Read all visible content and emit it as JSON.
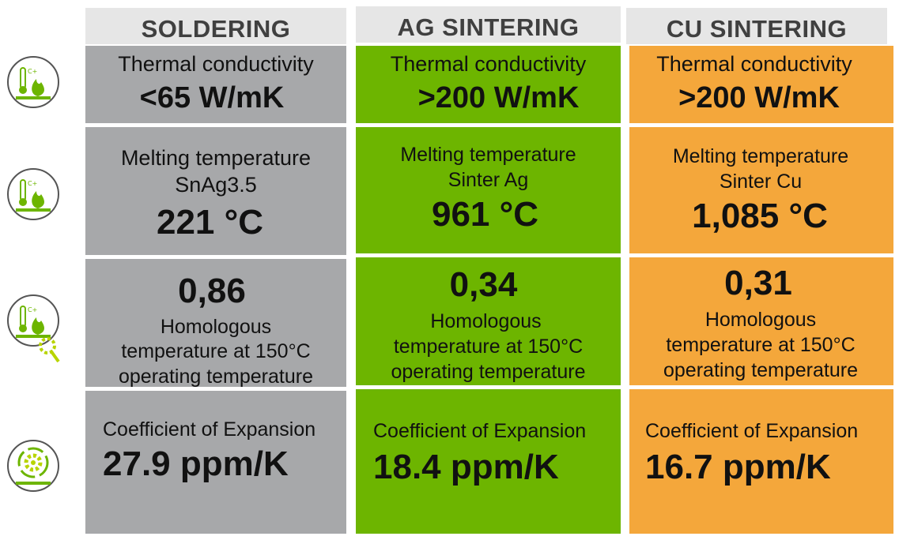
{
  "columns": [
    {
      "header": "SOLDERING",
      "thermal_label": "Thermal conductivity",
      "thermal_value": "<65 W/mK",
      "melting_label": "Melting temperature",
      "melting_material": "SnAg3.5",
      "melting_value": "221 °C",
      "homologous_value": "0,86",
      "homologous_line1": "Homologous",
      "homologous_line2": "temperature at 150°C",
      "homologous_line3": "operating temperature",
      "expansion_label": "Coefficient of Expansion",
      "expansion_value": "27.9 ppm/K"
    },
    {
      "header": "AG SINTERING",
      "thermal_label": "Thermal conductivity",
      "thermal_value": ">200 W/mK",
      "melting_label": "Melting temperature",
      "melting_material": "Sinter Ag",
      "melting_value": "961 °C",
      "homologous_value": "0,34",
      "homologous_line1": "Homologous",
      "homologous_line2": "temperature at 150°C",
      "homologous_line3": "operating temperature",
      "expansion_label": "Coefficient of Expansion",
      "expansion_value": "18.4 ppm/K"
    },
    {
      "header": "CU SINTERING",
      "thermal_label": "Thermal conductivity",
      "thermal_value": ">200 W/mK",
      "melting_label": "Melting temperature",
      "melting_material": "Sinter Cu",
      "melting_value": "1,085 °C",
      "homologous_value": "0,31",
      "homologous_line1": "Homologous",
      "homologous_line2": "temperature at 150°C",
      "homologous_line3": "operating temperature",
      "expansion_label": "Coefficient of Expansion",
      "expansion_value": "16.7 ppm/K"
    }
  ],
  "colors": {
    "soldering": "#a7a8aa",
    "ag_sintering": "#6db500",
    "cu_sintering": "#f4a73b",
    "header_bg": "#e6e6e6",
    "icon_green": "#6db500"
  },
  "icons": [
    "thermometer-flame-icon",
    "thermometer-flame-icon",
    "thermometer-flame-gear-icon",
    "gear-cycle-icon"
  ]
}
